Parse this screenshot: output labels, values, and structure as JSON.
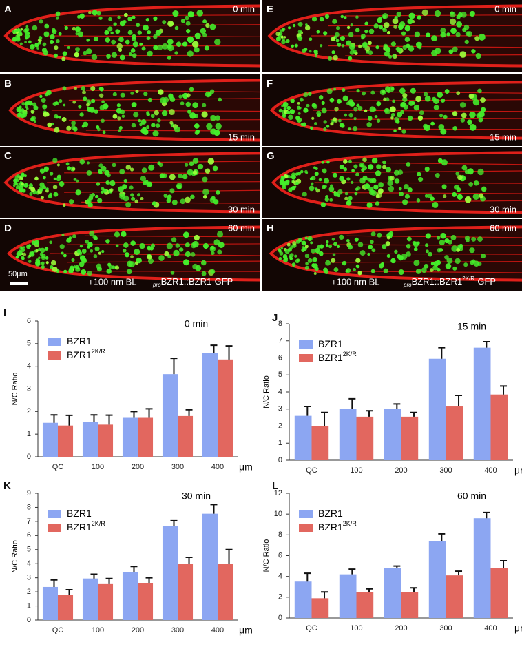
{
  "image_panels": [
    {
      "letter": "A",
      "time": "0 min"
    },
    {
      "letter": "B",
      "time": "15 min"
    },
    {
      "letter": "C",
      "time": "30 min"
    },
    {
      "letter": "D",
      "time": "60 min"
    },
    {
      "letter": "E",
      "time": "0 min"
    },
    {
      "letter": "F",
      "time": "15 min"
    },
    {
      "letter": "G",
      "time": "30 min"
    },
    {
      "letter": "H",
      "time": "60 min"
    }
  ],
  "scale_bar": "50μm",
  "treatment": "+100 nm BL",
  "left_construct": {
    "prefix": "pro",
    "main": "BZR1::BZR1-GFP"
  },
  "right_construct": {
    "prefix": "pro",
    "main": "BZR1::BZR1",
    "sup": "2K/R",
    "rest": "-GFP"
  },
  "chart_data": [
    {
      "type": "bar",
      "letter": "I",
      "title": "0 min",
      "y_label": "N/C Ratio",
      "x_unit": "μm",
      "categories": [
        "QC",
        "100",
        "200",
        "300",
        "400"
      ],
      "series": [
        {
          "name": "BZR1",
          "color": "#8ca6f2",
          "values": [
            1.5,
            1.55,
            1.72,
            3.65,
            4.58
          ],
          "errors": [
            0.35,
            0.3,
            0.28,
            0.7,
            0.35
          ]
        },
        {
          "name": "BZR1",
          "name_sup": "2K/R",
          "color": "#e2675f",
          "values": [
            1.38,
            1.42,
            1.72,
            1.8,
            4.3
          ],
          "errors": [
            0.45,
            0.42,
            0.4,
            0.28,
            0.6
          ]
        }
      ],
      "ylim": [
        0,
        6
      ],
      "yticks": [
        0,
        1,
        2,
        3,
        4,
        5,
        6
      ]
    },
    {
      "type": "bar",
      "letter": "J",
      "title": "15 min",
      "y_label": "N/C Ratio",
      "x_unit": "μm",
      "categories": [
        "QC",
        "100",
        "200",
        "300",
        "400"
      ],
      "series": [
        {
          "name": "BZR1",
          "color": "#8ca6f2",
          "values": [
            2.6,
            3.0,
            3.0,
            5.95,
            6.6
          ],
          "errors": [
            0.55,
            0.6,
            0.3,
            0.65,
            0.35
          ]
        },
        {
          "name": "BZR1",
          "name_sup": "2K/R",
          "color": "#e2675f",
          "values": [
            2.0,
            2.55,
            2.55,
            3.15,
            3.85
          ],
          "errors": [
            0.8,
            0.35,
            0.25,
            0.65,
            0.5
          ]
        }
      ],
      "ylim": [
        0,
        8
      ],
      "yticks": [
        0,
        1,
        2,
        3,
        4,
        5,
        6,
        7,
        8
      ]
    },
    {
      "type": "bar",
      "letter": "K",
      "title": "30 min",
      "y_label": "N/C Ratio",
      "x_unit": "μm",
      "categories": [
        "QC",
        "100",
        "200",
        "300",
        "400"
      ],
      "series": [
        {
          "name": "BZR1",
          "color": "#8ca6f2",
          "values": [
            2.35,
            2.95,
            3.4,
            6.7,
            7.55
          ],
          "errors": [
            0.5,
            0.3,
            0.4,
            0.35,
            0.65
          ]
        },
        {
          "name": "BZR1",
          "name_sup": "2K/R",
          "color": "#e2675f",
          "values": [
            1.8,
            2.55,
            2.6,
            4.0,
            4.0
          ],
          "errors": [
            0.35,
            0.4,
            0.4,
            0.45,
            1.0
          ]
        }
      ],
      "ylim": [
        0,
        9
      ],
      "yticks": [
        0,
        1,
        2,
        3,
        4,
        5,
        6,
        7,
        8,
        9
      ]
    },
    {
      "type": "bar",
      "letter": "L",
      "title": "60 min",
      "y_label": "N/C Ratio",
      "x_unit": "μm",
      "categories": [
        "QC",
        "100",
        "200",
        "300",
        "400"
      ],
      "series": [
        {
          "name": "BZR1",
          "color": "#8ca6f2",
          "values": [
            3.5,
            4.2,
            4.8,
            7.4,
            9.6
          ],
          "errors": [
            0.8,
            0.5,
            0.2,
            0.7,
            0.55
          ]
        },
        {
          "name": "BZR1",
          "name_sup": "2K/R",
          "color": "#e2675f",
          "values": [
            1.9,
            2.5,
            2.5,
            4.1,
            4.8
          ],
          "errors": [
            0.6,
            0.3,
            0.4,
            0.4,
            0.7
          ]
        }
      ],
      "ylim": [
        0,
        12
      ],
      "yticks": [
        0,
        2,
        4,
        6,
        8,
        10,
        12
      ]
    }
  ]
}
